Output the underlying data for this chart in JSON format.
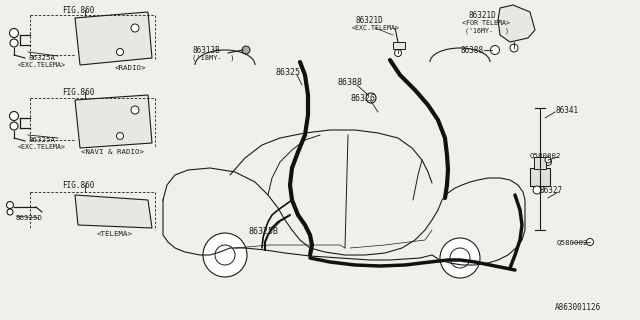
{
  "bg_color": "#f0f0eb",
  "line_color": "#1a1a1a",
  "text_color": "#1a1a1a",
  "watermark": "A863001126",
  "labels": {
    "fig860_1": "FIG.860",
    "radio": "<RADIO>",
    "exc_telema_1": "<EXC.TELEMA>",
    "part_86325A_1": "86325A",
    "fig860_2": "FIG.860",
    "navi_radio": "<NAVI & RADIO>",
    "exc_telema_2": "<EXC.TELEMA>",
    "part_86325A_2": "86325A",
    "fig860_3": "FIG.860",
    "telema": "<TELEMA>",
    "part_86325D": "86325D",
    "part_86313B": "86313B",
    "note_18my": "('18MY-  )",
    "part_86325": "86325",
    "part_86388": "86388",
    "part_86326": "86326",
    "part_86321D_exc": "86321D",
    "exc_telema_3": "<EXC.TELEMA>",
    "part_86321D_for": "86321D",
    "for_telema": "<FOR TELEMA>",
    "note_16my": "('16MY-   )",
    "part_86388_2": "86388",
    "part_Q580002_1": "Q580002",
    "part_86341": "86341",
    "part_86327": "86327",
    "part_Q580002_2": "Q580002",
    "part_86325B": "86325B"
  }
}
